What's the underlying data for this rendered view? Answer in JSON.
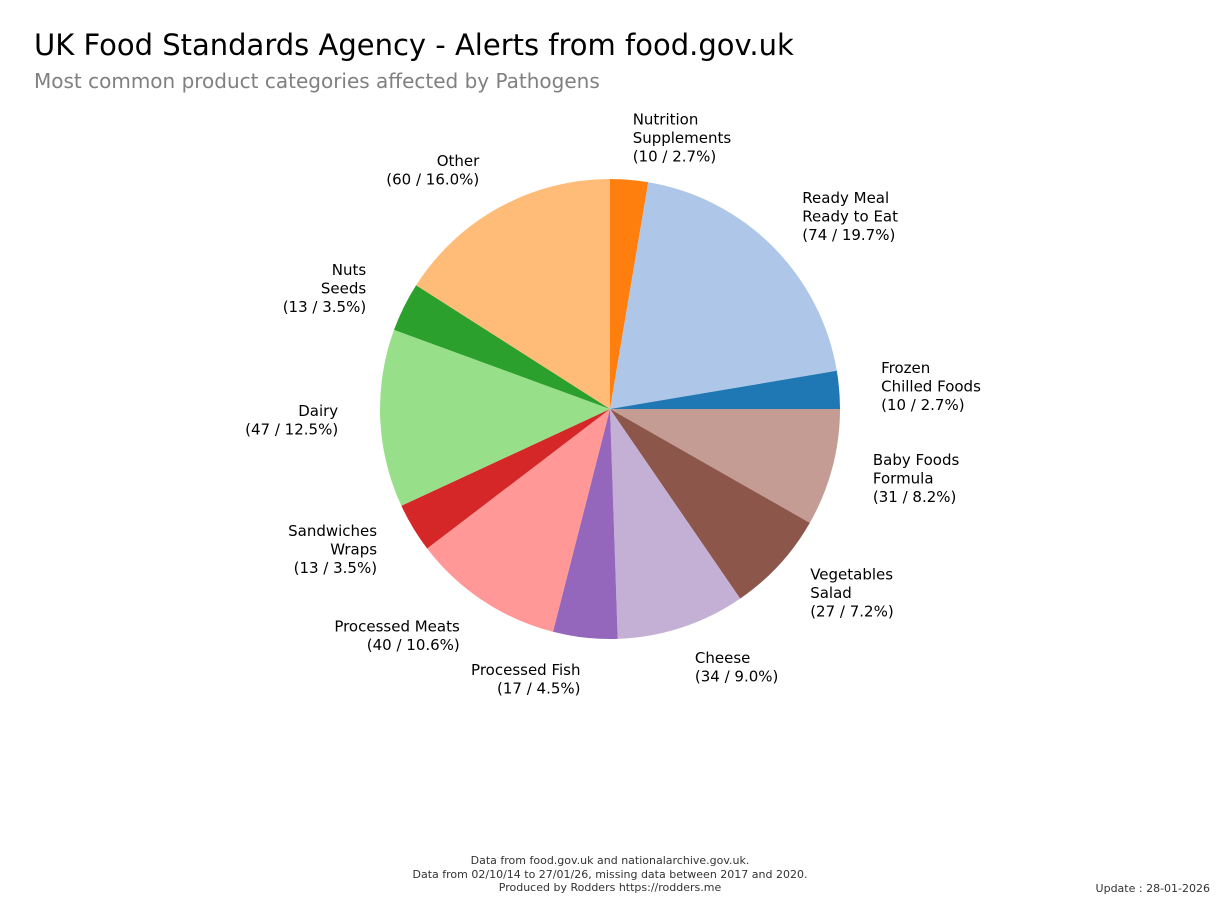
{
  "header": {
    "title": "UK Food Standards Agency - Alerts from food.gov.uk",
    "subtitle": "Most common product categories affected by Pathogens"
  },
  "chart_data": {
    "type": "pie",
    "title": "UK Food Standards Agency - Alerts from food.gov.uk",
    "subtitle": "Most common product categories affected by Pathogens",
    "start_angle_deg": 90,
    "direction": "clockwise",
    "slices": [
      {
        "label": [
          "Nutrition",
          "Supplements"
        ],
        "count": 10,
        "percent": "2.7%",
        "color": "#ff7f0e"
      },
      {
        "label": [
          "Ready Meal",
          "Ready to Eat"
        ],
        "count": 74,
        "percent": "19.7%",
        "color": "#aec7e8"
      },
      {
        "label": [
          "Frozen",
          "Chilled Foods"
        ],
        "count": 10,
        "percent": "2.7%",
        "color": "#1f77b4"
      },
      {
        "label": [
          "Baby Foods",
          "Formula"
        ],
        "count": 31,
        "percent": "8.2%",
        "color": "#c49c94"
      },
      {
        "label": [
          "Vegetables",
          "Salad"
        ],
        "count": 27,
        "percent": "7.2%",
        "color": "#8c564b"
      },
      {
        "label": [
          "Cheese"
        ],
        "count": 34,
        "percent": "9.0%",
        "color": "#c5b0d5"
      },
      {
        "label": [
          "Processed Fish"
        ],
        "count": 17,
        "percent": "4.5%",
        "color": "#9467bd"
      },
      {
        "label": [
          "Processed Meats"
        ],
        "count": 40,
        "percent": "10.6%",
        "color": "#ff9896"
      },
      {
        "label": [
          "Sandwiches",
          "Wraps"
        ],
        "count": 13,
        "percent": "3.5%",
        "color": "#d62728"
      },
      {
        "label": [
          "Dairy"
        ],
        "count": 47,
        "percent": "12.5%",
        "color": "#98df8a"
      },
      {
        "label": [
          "Nuts",
          "Seeds"
        ],
        "count": 13,
        "percent": "3.5%",
        "color": "#2ca02c"
      },
      {
        "label": [
          "Other"
        ],
        "count": 60,
        "percent": "16.0%",
        "color": "#ffbb78"
      }
    ]
  },
  "footer": {
    "line1": "Data from food.gov.uk and nationalarchive.gov.uk.",
    "line2": "Data from 02/10/14 to 27/01/26, missing data between 2017 and 2020.",
    "line3": "Produced by Rodders https://rodders.me",
    "update": "Update : 28-01-2026"
  }
}
